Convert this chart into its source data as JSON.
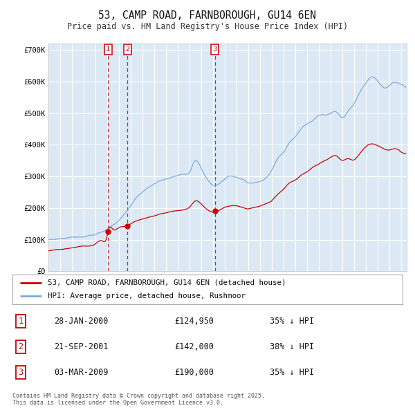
{
  "title": "53, CAMP ROAD, FARNBOROUGH, GU14 6EN",
  "subtitle": "Price paid vs. HM Land Registry's House Price Index (HPI)",
  "background_color": "#ffffff",
  "plot_bg_color": "#dce9f5",
  "grid_color": "#ffffff",
  "sale_dates_str": [
    "2000-01-28",
    "2001-09-21",
    "2009-03-03"
  ],
  "sale_prices": [
    124950,
    142000,
    190000
  ],
  "sale_labels": [
    "1",
    "2",
    "3"
  ],
  "legend_line1": "53, CAMP ROAD, FARNBOROUGH, GU14 6EN (detached house)",
  "legend_line2": "HPI: Average price, detached house, Rushmoor",
  "table_rows": [
    [
      "1",
      "28-JAN-2000",
      "£124,950",
      "35% ↓ HPI"
    ],
    [
      "2",
      "21-SEP-2001",
      "£142,000",
      "38% ↓ HPI"
    ],
    [
      "3",
      "03-MAR-2009",
      "£190,000",
      "35% ↓ HPI"
    ]
  ],
  "footnote": "Contains HM Land Registry data © Crown copyright and database right 2025.\nThis data is licensed under the Open Government Licence v3.0.",
  "red_color": "#cc0000",
  "blue_color": "#7aaadd",
  "shade_color": "#dce9f5",
  "ylim": [
    0,
    720000
  ],
  "yticks": [
    0,
    100000,
    200000,
    300000,
    400000,
    500000,
    600000,
    700000
  ],
  "ytick_labels": [
    "£0",
    "£100K",
    "£200K",
    "£300K",
    "£400K",
    "£500K",
    "£600K",
    "£700K"
  ],
  "xstart_year": 1995,
  "xend_year": 2025
}
